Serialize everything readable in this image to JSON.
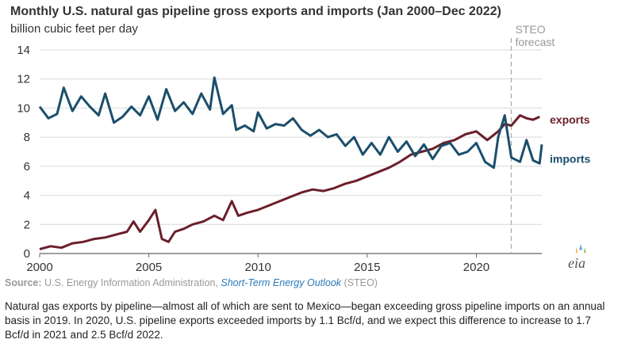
{
  "title": "Monthly U.S. natural gas pipeline gross exports and imports (Jan 2000–Dec 2022)",
  "subtitle": "billion cubic feet per day",
  "source": {
    "label": "Source:",
    "text": "U.S. Energy Information Administration,",
    "link": "Short-Term Energy Outlook",
    "suffix": "(STEO)"
  },
  "caption": "Natural gas exports by pipeline—almost all of which are sent to Mexico—began exceeding gross pipeline imports on an annual basis in 2019. In 2020, U.S. pipeline exports exceeded imports by 1.1 Bcf/d, and we expect this difference to increase to 1.7 Bcf/d in 2021 and 2.5 Bcf/d 2022.",
  "logo_text": "eia",
  "chart_data": {
    "type": "line",
    "title": "Monthly U.S. natural gas pipeline gross exports and imports (Jan 2000–Dec 2022)",
    "ylabel": "billion cubic feet per day",
    "xlim": [
      2000,
      2023
    ],
    "ylim": [
      0,
      14
    ],
    "x_ticks": [
      2000,
      2005,
      2010,
      2015,
      2020
    ],
    "y_ticks": [
      0,
      2,
      4,
      6,
      8,
      10,
      12,
      14
    ],
    "grid": "horizontal",
    "forecast_start": 2021.6,
    "forecast_label": [
      "STEO",
      "forecast"
    ],
    "series": [
      {
        "name": "exports",
        "color": "#6b1f2a",
        "points": [
          [
            2000.0,
            0.3
          ],
          [
            2000.5,
            0.5
          ],
          [
            2001.0,
            0.4
          ],
          [
            2001.5,
            0.7
          ],
          [
            2002.0,
            0.8
          ],
          [
            2002.5,
            1.0
          ],
          [
            2003.0,
            1.1
          ],
          [
            2003.5,
            1.3
          ],
          [
            2004.0,
            1.5
          ],
          [
            2004.3,
            2.2
          ],
          [
            2004.6,
            1.5
          ],
          [
            2005.0,
            2.3
          ],
          [
            2005.3,
            3.0
          ],
          [
            2005.6,
            1.0
          ],
          [
            2005.9,
            0.8
          ],
          [
            2006.2,
            1.5
          ],
          [
            2006.6,
            1.7
          ],
          [
            2007.0,
            2.0
          ],
          [
            2007.5,
            2.2
          ],
          [
            2008.0,
            2.6
          ],
          [
            2008.4,
            2.3
          ],
          [
            2008.8,
            3.6
          ],
          [
            2009.1,
            2.6
          ],
          [
            2009.5,
            2.8
          ],
          [
            2010.0,
            3.0
          ],
          [
            2010.5,
            3.3
          ],
          [
            2011.0,
            3.6
          ],
          [
            2011.5,
            3.9
          ],
          [
            2012.0,
            4.2
          ],
          [
            2012.5,
            4.4
          ],
          [
            2013.0,
            4.3
          ],
          [
            2013.5,
            4.5
          ],
          [
            2014.0,
            4.8
          ],
          [
            2014.5,
            5.0
          ],
          [
            2015.0,
            5.3
          ],
          [
            2015.5,
            5.6
          ],
          [
            2016.0,
            5.9
          ],
          [
            2016.5,
            6.3
          ],
          [
            2017.0,
            6.8
          ],
          [
            2017.5,
            7.0
          ],
          [
            2018.0,
            7.2
          ],
          [
            2018.5,
            7.6
          ],
          [
            2019.0,
            7.8
          ],
          [
            2019.5,
            8.2
          ],
          [
            2020.0,
            8.4
          ],
          [
            2020.5,
            7.8
          ],
          [
            2021.0,
            8.4
          ],
          [
            2021.3,
            8.9
          ],
          [
            2021.6,
            8.8
          ],
          [
            2022.0,
            9.5
          ],
          [
            2022.3,
            9.3
          ],
          [
            2022.6,
            9.2
          ],
          [
            2022.9,
            9.4
          ]
        ]
      },
      {
        "name": "imports",
        "color": "#1b4f6b",
        "points": [
          [
            2000.0,
            10.1
          ],
          [
            2000.4,
            9.3
          ],
          [
            2000.8,
            9.6
          ],
          [
            2001.1,
            11.4
          ],
          [
            2001.5,
            9.8
          ],
          [
            2001.9,
            10.8
          ],
          [
            2002.3,
            10.1
          ],
          [
            2002.7,
            9.5
          ],
          [
            2003.0,
            11.0
          ],
          [
            2003.4,
            9.0
          ],
          [
            2003.8,
            9.4
          ],
          [
            2004.2,
            10.1
          ],
          [
            2004.6,
            9.5
          ],
          [
            2005.0,
            10.8
          ],
          [
            2005.4,
            9.2
          ],
          [
            2005.8,
            11.3
          ],
          [
            2006.2,
            9.8
          ],
          [
            2006.6,
            10.4
          ],
          [
            2007.0,
            9.6
          ],
          [
            2007.4,
            11.0
          ],
          [
            2007.8,
            9.9
          ],
          [
            2008.0,
            12.1
          ],
          [
            2008.4,
            9.6
          ],
          [
            2008.8,
            10.2
          ],
          [
            2009.0,
            8.5
          ],
          [
            2009.4,
            8.8
          ],
          [
            2009.8,
            8.4
          ],
          [
            2010.0,
            9.7
          ],
          [
            2010.4,
            8.6
          ],
          [
            2010.8,
            8.9
          ],
          [
            2011.2,
            8.8
          ],
          [
            2011.6,
            9.3
          ],
          [
            2012.0,
            8.5
          ],
          [
            2012.4,
            8.1
          ],
          [
            2012.8,
            8.5
          ],
          [
            2013.2,
            8.0
          ],
          [
            2013.6,
            8.2
          ],
          [
            2014.0,
            7.4
          ],
          [
            2014.4,
            8.0
          ],
          [
            2014.8,
            6.8
          ],
          [
            2015.2,
            7.6
          ],
          [
            2015.6,
            6.8
          ],
          [
            2016.0,
            8.0
          ],
          [
            2016.4,
            7.0
          ],
          [
            2016.8,
            7.7
          ],
          [
            2017.2,
            6.7
          ],
          [
            2017.6,
            7.5
          ],
          [
            2018.0,
            6.5
          ],
          [
            2018.4,
            7.4
          ],
          [
            2018.8,
            7.6
          ],
          [
            2019.2,
            6.8
          ],
          [
            2019.6,
            7.0
          ],
          [
            2020.0,
            7.6
          ],
          [
            2020.4,
            6.3
          ],
          [
            2020.8,
            5.9
          ],
          [
            2021.0,
            8.0
          ],
          [
            2021.3,
            9.5
          ],
          [
            2021.6,
            6.6
          ],
          [
            2022.0,
            6.3
          ],
          [
            2022.3,
            7.8
          ],
          [
            2022.6,
            6.4
          ],
          [
            2022.9,
            6.2
          ],
          [
            2023.0,
            7.5
          ]
        ]
      }
    ]
  }
}
